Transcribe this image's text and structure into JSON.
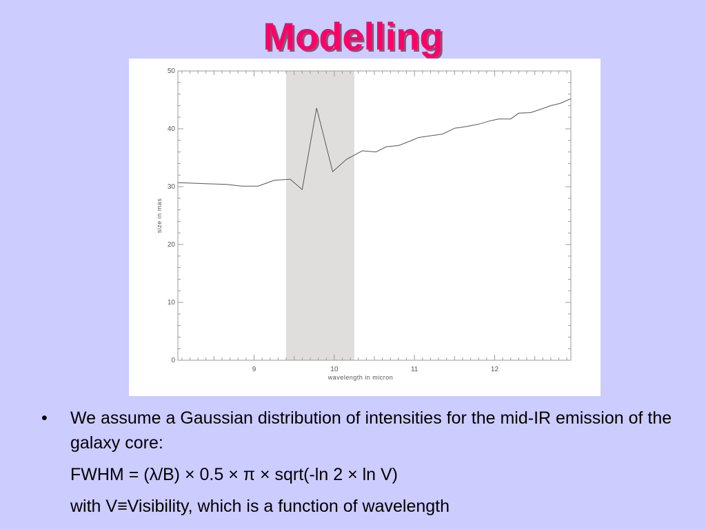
{
  "slide": {
    "title": "Modelling",
    "bullet": {
      "symbol": "•",
      "text": "We assume a Gaussian distribution of intensities for the mid-IR emission of the galaxy core:"
    },
    "formula": "FWHM = (λ/B) × 0.5 × π × sqrt(-ln 2 × ln V)",
    "note": "with V≡Visibility, which is a function of wavelength"
  },
  "chart_data": {
    "type": "line",
    "xlabel": "wavelength in micron",
    "ylabel": "size in mas",
    "xlim": [
      8.05,
      12.95
    ],
    "ylim": [
      0,
      50
    ],
    "x_ticks": [
      9,
      10,
      11,
      12
    ],
    "y_ticks": [
      0,
      10,
      20,
      30,
      40,
      50
    ],
    "x_tick_labels": [
      "9",
      "10",
      "11",
      "12"
    ],
    "y_tick_labels": [
      "0",
      "10",
      "20",
      "30",
      "40",
      "50"
    ],
    "grid": false,
    "shaded_region": {
      "x_start": 9.4,
      "x_end": 10.25,
      "color": "#e0dedc"
    },
    "series": [
      {
        "x": [
          8.05,
          8.4,
          8.65,
          8.85,
          9.05,
          9.25,
          9.45,
          9.6,
          9.78,
          9.98,
          10.15,
          10.35,
          10.52,
          10.65,
          10.8,
          10.95,
          11.05,
          11.2,
          11.35,
          11.5,
          11.65,
          11.8,
          11.95,
          12.05,
          12.2,
          12.3,
          12.45,
          12.58,
          12.7,
          12.82,
          12.95
        ],
        "y": [
          30.7,
          30.5,
          30.4,
          30.1,
          30.1,
          31.1,
          31.3,
          29.5,
          43.6,
          32.6,
          34.7,
          36.2,
          36.0,
          36.9,
          37.1,
          37.9,
          38.5,
          38.8,
          39.1,
          40.1,
          40.4,
          40.8,
          41.4,
          41.7,
          41.7,
          42.7,
          42.8,
          43.4,
          44.0,
          44.4,
          45.2
        ]
      }
    ],
    "colors": {
      "line": "#555555",
      "frame": "#999999"
    }
  }
}
